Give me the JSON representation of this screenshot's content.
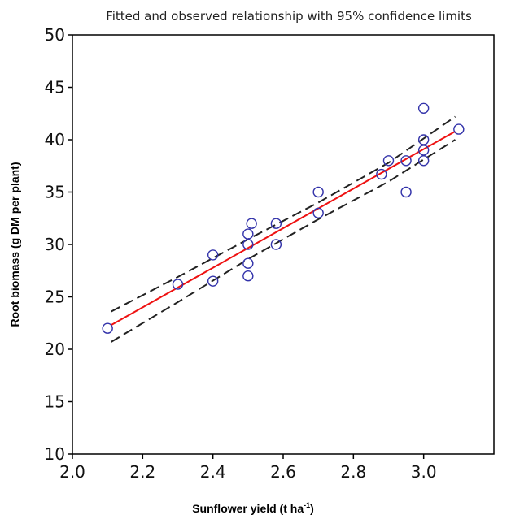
{
  "chart_data": {
    "type": "scatter",
    "title": "Fitted and observed relationship with 95% confidence limits",
    "xlabel_main": "Sunflower yield (t ha",
    "xlabel_sup": "-1",
    "xlabel_close": ")",
    "ylabel": "Root biomass (g DM per plant)",
    "xlim": [
      2.0,
      3.2
    ],
    "ylim": [
      10,
      50
    ],
    "x_ticks": [
      "2.0",
      "2.2",
      "2.4",
      "2.6",
      "2.8",
      "3.0"
    ],
    "y_ticks": [
      "10",
      "15",
      "20",
      "25",
      "30",
      "35",
      "40",
      "45",
      "50"
    ],
    "grid": false,
    "colors": {
      "points": "#3333aa",
      "fit": "#ee1111",
      "confidence": "#222222"
    },
    "points": [
      {
        "x": 2.1,
        "y": 22.0
      },
      {
        "x": 2.3,
        "y": 26.2
      },
      {
        "x": 2.4,
        "y": 29.0
      },
      {
        "x": 2.4,
        "y": 26.5
      },
      {
        "x": 2.5,
        "y": 31.0
      },
      {
        "x": 2.5,
        "y": 30.0
      },
      {
        "x": 2.5,
        "y": 28.2
      },
      {
        "x": 2.5,
        "y": 27.0
      },
      {
        "x": 2.51,
        "y": 32.0
      },
      {
        "x": 2.58,
        "y": 32.0
      },
      {
        "x": 2.58,
        "y": 30.0
      },
      {
        "x": 2.7,
        "y": 35.0
      },
      {
        "x": 2.7,
        "y": 33.0
      },
      {
        "x": 2.88,
        "y": 36.7
      },
      {
        "x": 2.9,
        "y": 38.0
      },
      {
        "x": 2.95,
        "y": 38.0
      },
      {
        "x": 2.95,
        "y": 35.0
      },
      {
        "x": 3.0,
        "y": 43.0
      },
      {
        "x": 3.0,
        "y": 40.0
      },
      {
        "x": 3.0,
        "y": 39.0
      },
      {
        "x": 3.0,
        "y": 38.0
      },
      {
        "x": 3.1,
        "y": 41.0
      }
    ],
    "fit_line": {
      "x": [
        2.11,
        3.09
      ],
      "y": [
        22.3,
        40.8
      ]
    },
    "upper_confidence": {
      "x": [
        2.11,
        2.3,
        2.5,
        2.7,
        2.9,
        3.09
      ],
      "y": [
        23.6,
        26.9,
        30.5,
        34.0,
        37.8,
        42.2
      ]
    },
    "lower_confidence": {
      "x": [
        2.11,
        2.3,
        2.5,
        2.7,
        2.9,
        3.09
      ],
      "y": [
        20.7,
        24.5,
        28.6,
        32.4,
        36.0,
        40.0
      ]
    }
  }
}
